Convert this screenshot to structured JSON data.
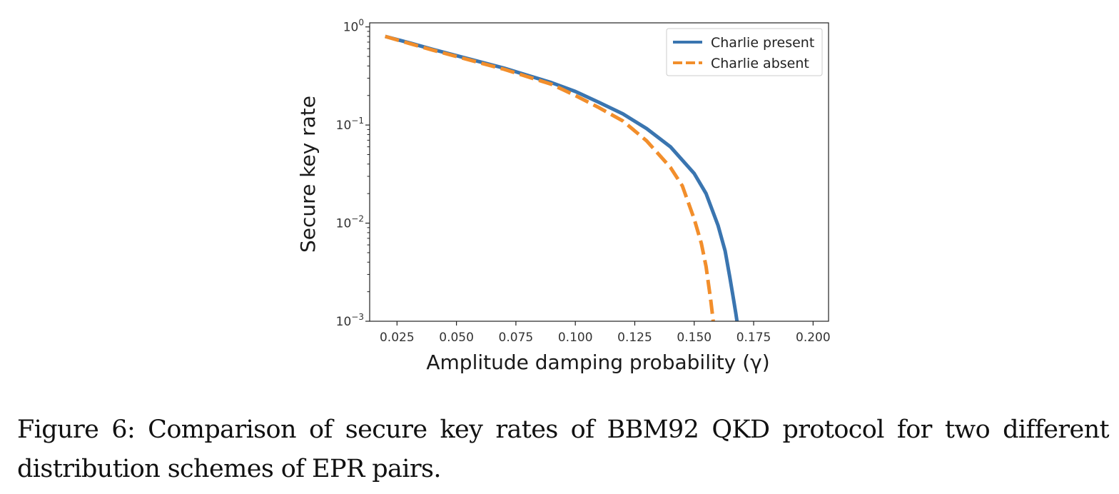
{
  "chart_data": {
    "type": "line",
    "title": "",
    "xlabel": "Amplitude damping probability (γ)",
    "ylabel": "Secure key rate",
    "xlim": [
      0.0135,
      0.2065
    ],
    "ylim": [
      0.001,
      1.1
    ],
    "yscale": "log",
    "xticks": [
      0.025,
      0.05,
      0.075,
      0.1,
      0.125,
      0.15,
      0.175,
      0.2
    ],
    "xtick_labels": [
      "0.025",
      "0.050",
      "0.075",
      "0.100",
      "0.125",
      "0.150",
      "0.175",
      "0.200"
    ],
    "yticks": [
      1,
      0.1,
      0.01,
      0.001
    ],
    "ytick_labels": [
      {
        "base": "10",
        "exp": "0"
      },
      {
        "base": "10",
        "exp": "−1"
      },
      {
        "base": "10",
        "exp": "−2"
      },
      {
        "base": "10",
        "exp": "−3"
      }
    ],
    "grid": false,
    "legend_position": "top-right",
    "series": [
      {
        "name": "Charlie present",
        "color": "#3a75b0",
        "style": "solid",
        "x": [
          0.02,
          0.03,
          0.04,
          0.05,
          0.06,
          0.07,
          0.08,
          0.09,
          0.1,
          0.11,
          0.12,
          0.13,
          0.14,
          0.15,
          0.155,
          0.16,
          0.163,
          0.165,
          0.1665,
          0.1675,
          0.168
        ],
        "y": [
          0.8,
          0.69,
          0.59,
          0.51,
          0.44,
          0.38,
          0.32,
          0.27,
          0.22,
          0.17,
          0.13,
          0.092,
          0.06,
          0.032,
          0.02,
          0.0095,
          0.0052,
          0.0028,
          0.0017,
          0.0012,
          0.001
        ]
      },
      {
        "name": "Charlie absent",
        "color": "#f28e2b",
        "style": "dashed",
        "x": [
          0.02,
          0.03,
          0.04,
          0.05,
          0.06,
          0.07,
          0.08,
          0.09,
          0.1,
          0.11,
          0.12,
          0.13,
          0.14,
          0.145,
          0.15,
          0.153,
          0.155,
          0.157,
          0.158
        ],
        "y": [
          0.8,
          0.68,
          0.58,
          0.5,
          0.43,
          0.37,
          0.31,
          0.26,
          0.2,
          0.15,
          0.11,
          0.069,
          0.037,
          0.024,
          0.011,
          0.0062,
          0.0036,
          0.0016,
          0.001
        ]
      }
    ]
  },
  "caption": "Figure 6:  Comparison of secure key rates of BBM92 QKD protocol for two different distribution schemes of EPR pairs."
}
